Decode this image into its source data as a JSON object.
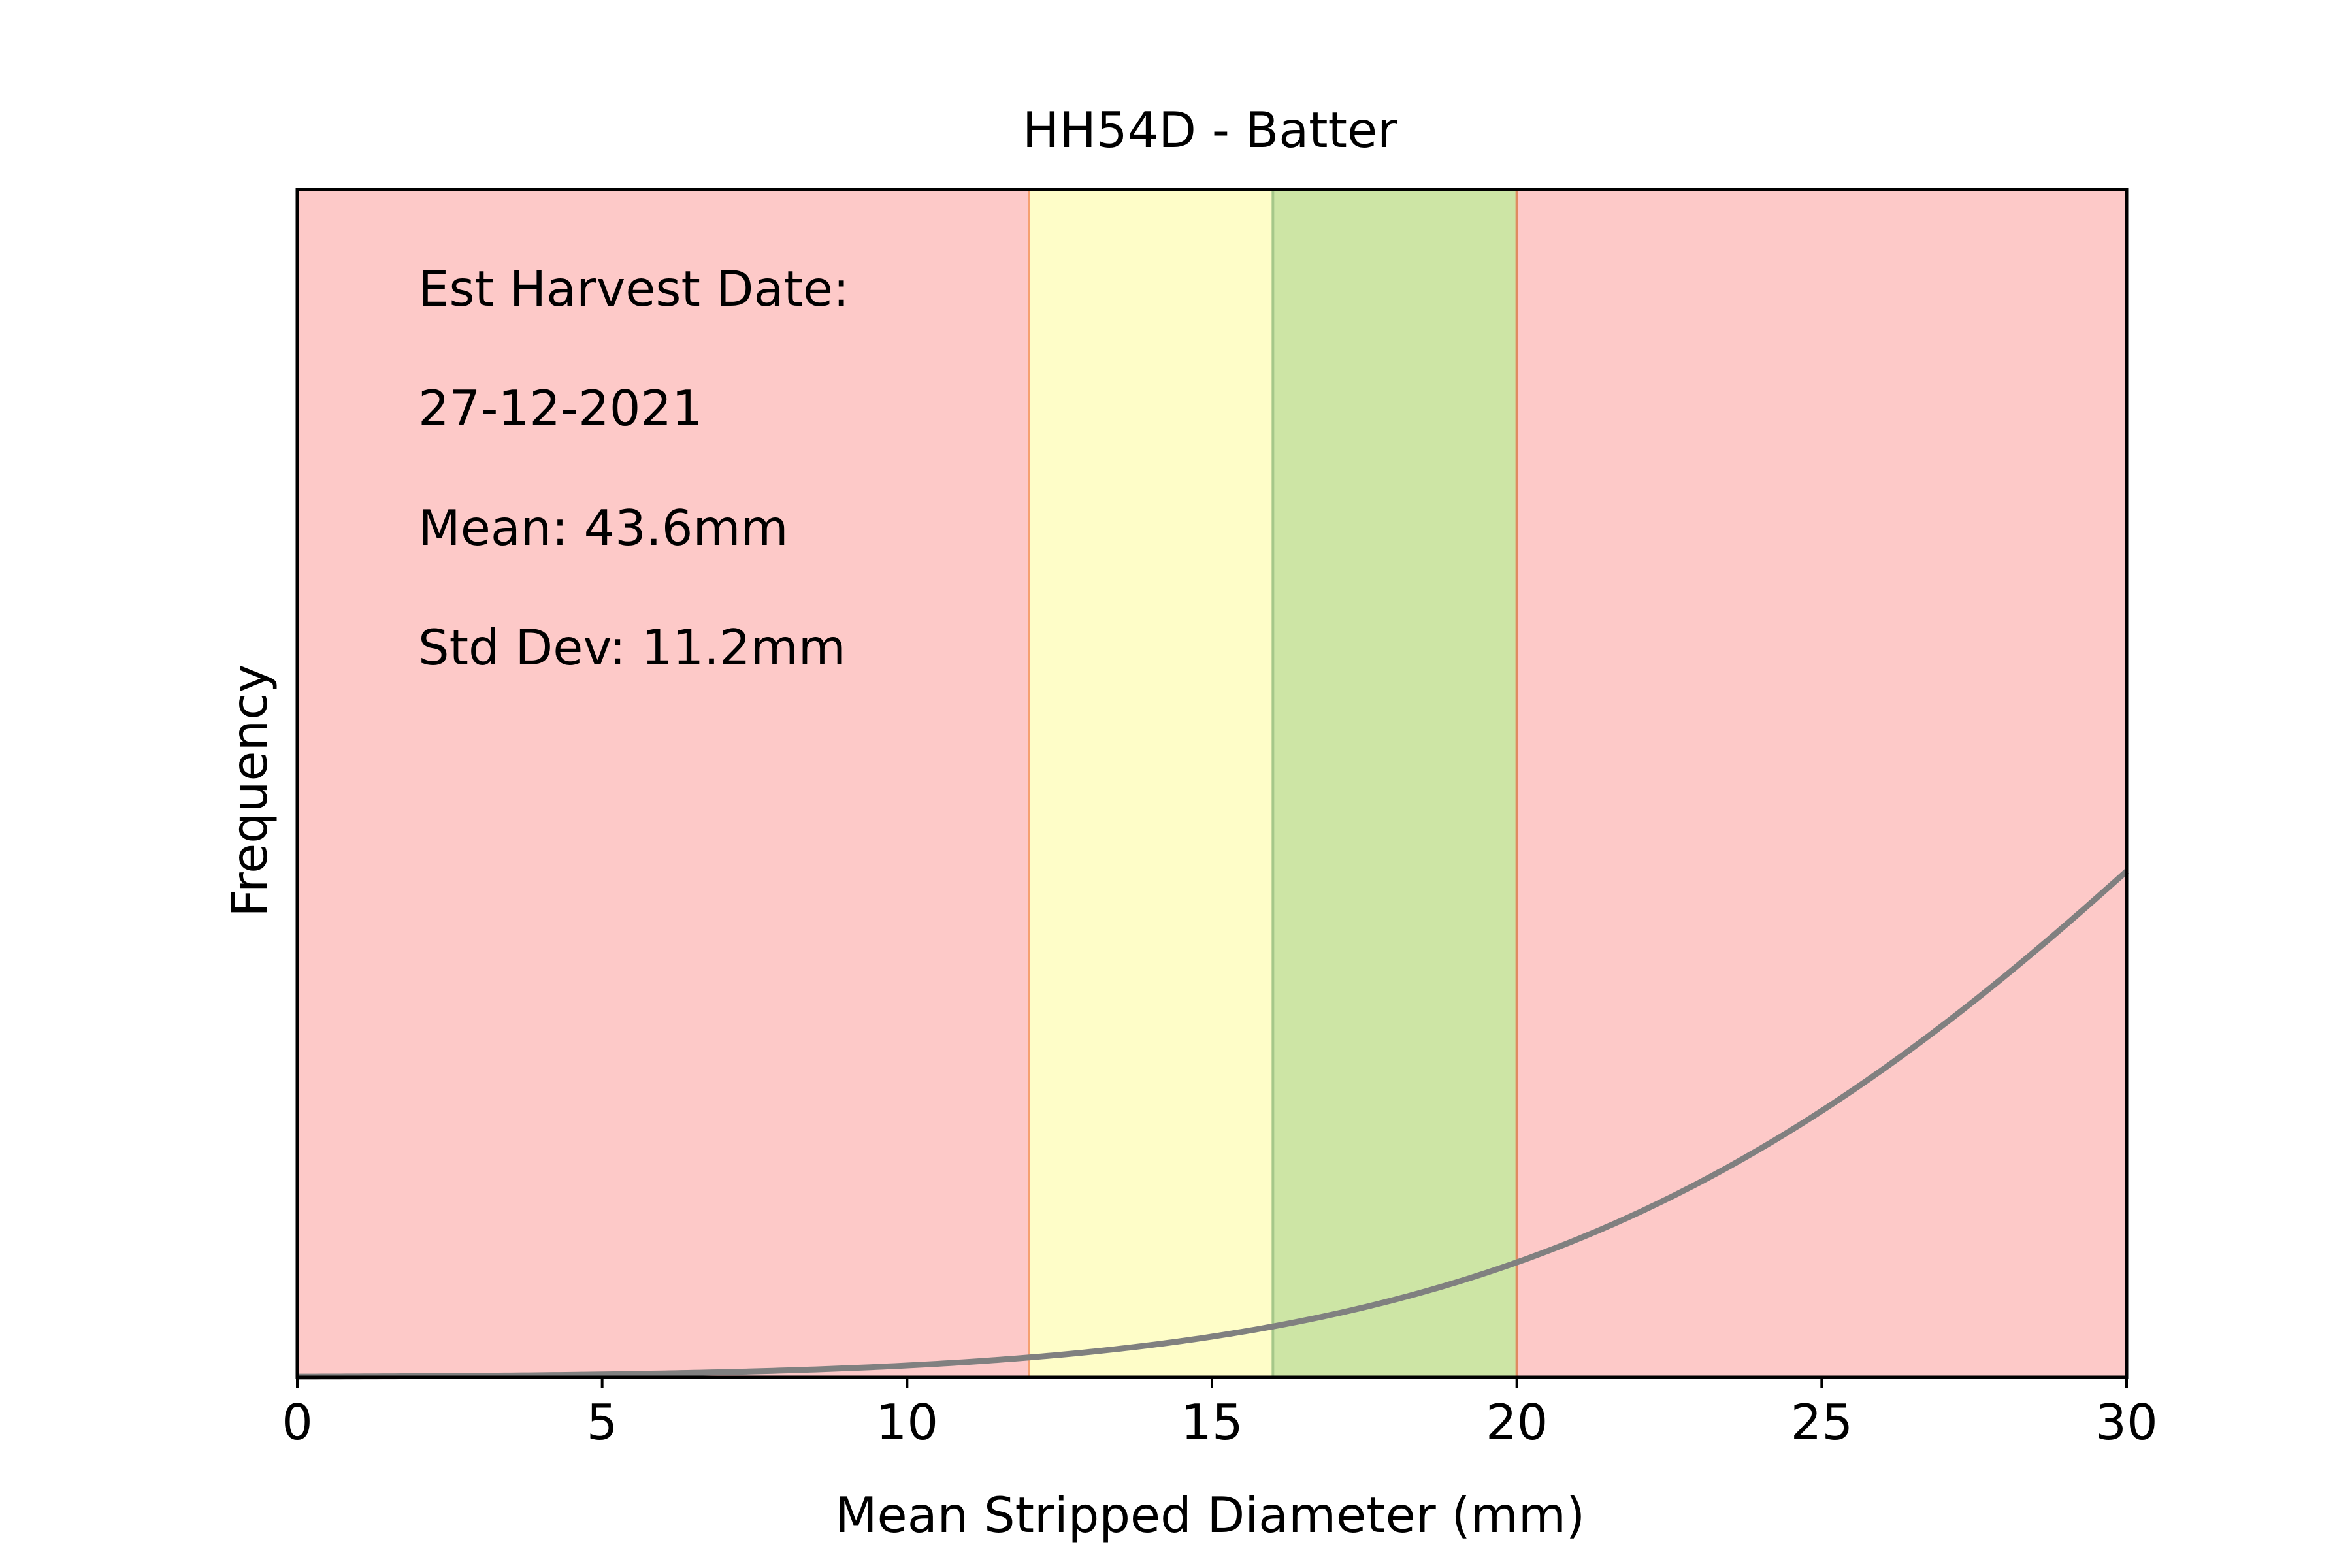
{
  "chart_data": {
    "type": "line",
    "title": "HH54D - Batter",
    "xlabel": "Mean Stripped Diameter (mm)",
    "ylabel": "Frequency",
    "xlim": [
      0,
      30
    ],
    "ylim": [
      0,
      0.04
    ],
    "xticks": [
      "0",
      "5",
      "10",
      "15",
      "20",
      "25",
      "30"
    ],
    "yticks_visible": false,
    "grid": false,
    "annotations": [
      "Est Harvest Date:",
      "27-12-2021",
      "Mean: 43.6mm",
      "Std Dev: 11.2mm"
    ],
    "bands": [
      {
        "x0": 0,
        "x1": 12,
        "color": "#fdc9c8",
        "edge": "#f5a29c"
      },
      {
        "x0": 12,
        "x1": 16,
        "color": "#fefdc8",
        "edge": "#f5a070"
      },
      {
        "x0": 16,
        "x1": 20,
        "color": "#cde5a5",
        "edge": "#a6c88a"
      },
      {
        "x0": 20,
        "x1": 30,
        "color": "#fdc9c8",
        "edge": "#e08a60"
      }
    ],
    "series": [
      {
        "curve": "normal-pdf",
        "mean": 43.6,
        "std": 11.2,
        "color": "#808080"
      }
    ]
  }
}
